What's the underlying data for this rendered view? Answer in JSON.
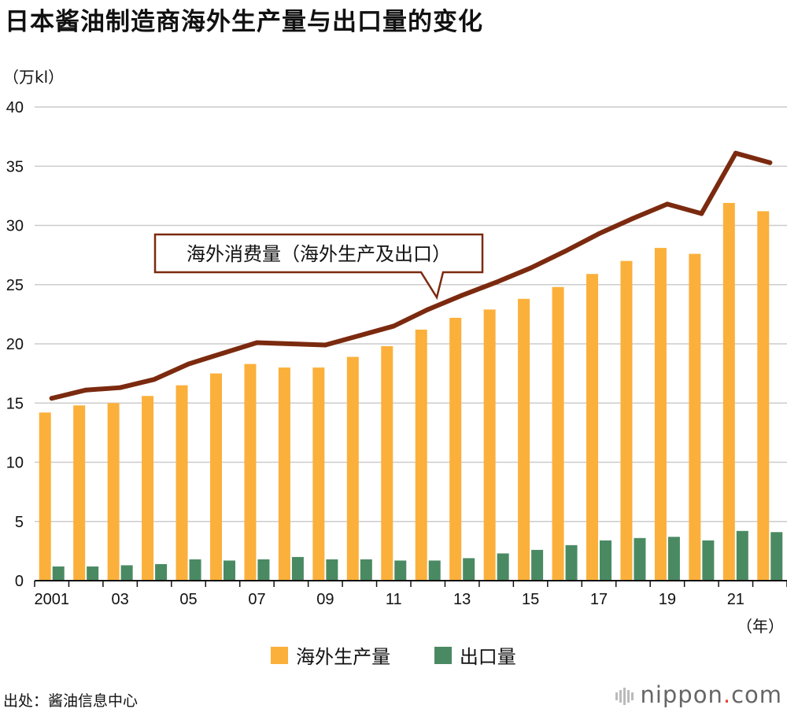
{
  "title": "日本酱油制造商海外生产量与出口量的变化",
  "source": "出处：酱油信息中心",
  "logo": {
    "name": "nippon",
    "dot": ".",
    "suffix": "com"
  },
  "colors": {
    "overseas": "#fbb03b",
    "export": "#4a8a63",
    "line": "#7b2a0f",
    "grid": "#cccccc"
  },
  "chart_data": {
    "type": "bar",
    "title": "日本酱油制造商海外生产量与出口量的变化",
    "ylabel": "（万kl）",
    "xlabel": "（年）",
    "ylim": [
      0,
      40
    ],
    "yticks": [
      0,
      5,
      10,
      15,
      20,
      25,
      30,
      35,
      40
    ],
    "categories": [
      "2001",
      "02",
      "03",
      "04",
      "05",
      "06",
      "07",
      "08",
      "09",
      "10",
      "11",
      "12",
      "13",
      "14",
      "15",
      "16",
      "17",
      "18",
      "19",
      "20",
      "21",
      "22"
    ],
    "x_tick_labels": [
      "2001",
      "",
      "03",
      "",
      "05",
      "",
      "07",
      "",
      "09",
      "",
      "11",
      "",
      "13",
      "",
      "15",
      "",
      "17",
      "",
      "19",
      "",
      "21",
      ""
    ],
    "series": [
      {
        "name": "海外生产量",
        "kind": "bar",
        "values": [
          14.2,
          14.8,
          15.0,
          15.6,
          16.5,
          17.5,
          18.3,
          18.0,
          18.0,
          18.9,
          19.8,
          21.2,
          22.2,
          22.9,
          23.8,
          24.8,
          25.9,
          27.0,
          28.1,
          27.6,
          31.9,
          31.2
        ]
      },
      {
        "name": "出口量",
        "kind": "bar",
        "values": [
          1.2,
          1.2,
          1.3,
          1.4,
          1.8,
          1.7,
          1.8,
          2.0,
          1.8,
          1.8,
          1.7,
          1.7,
          1.9,
          2.3,
          2.6,
          3.0,
          3.4,
          3.6,
          3.7,
          3.4,
          4.2,
          4.1
        ]
      },
      {
        "name": "海外消费量（海外生产及出口）",
        "kind": "line",
        "values": [
          15.4,
          16.1,
          16.3,
          17.0,
          18.3,
          19.2,
          20.1,
          20.0,
          19.9,
          20.7,
          21.5,
          22.9,
          24.1,
          25.2,
          26.4,
          27.8,
          29.3,
          30.6,
          31.8,
          31.0,
          36.1,
          35.3
        ]
      }
    ],
    "legend": [
      "海外生产量",
      "出口量"
    ],
    "annotation": "海外消费量（海外生产及出口）"
  }
}
